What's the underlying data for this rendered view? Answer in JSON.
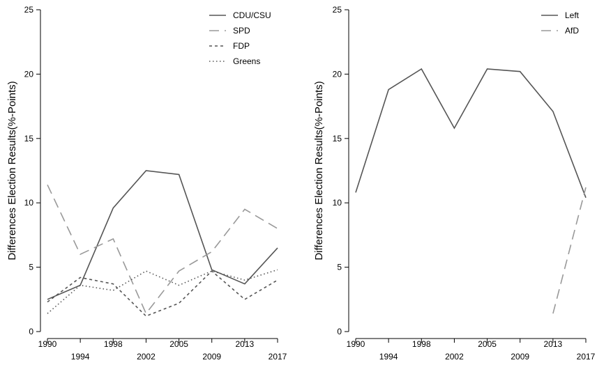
{
  "chart_data": [
    {
      "type": "line",
      "title": "",
      "xlabel": "",
      "ylabel": "Differences Election Results(%-Points)",
      "x": [
        "1990",
        "1994",
        "1998",
        "2002",
        "2005",
        "2009",
        "2013",
        "2017"
      ],
      "ylim": [
        0,
        25
      ],
      "yticks": [
        0,
        5,
        10,
        15,
        20,
        25
      ],
      "grid": false,
      "legend_position": "top-right",
      "series": [
        {
          "name": "CDU/CSU",
          "dash": "solid",
          "color": "#555555",
          "values": [
            2.5,
            3.6,
            9.6,
            12.5,
            12.2,
            4.8,
            3.7,
            6.5
          ]
        },
        {
          "name": "SPD",
          "dash": "longdash",
          "color": "#999999",
          "values": [
            11.4,
            6.0,
            7.2,
            1.4,
            4.7,
            6.2,
            9.5,
            8.0
          ]
        },
        {
          "name": "FDP",
          "dash": "dashed",
          "color": "#555555",
          "values": [
            2.3,
            4.2,
            3.7,
            1.2,
            2.2,
            4.7,
            2.5,
            4.0
          ]
        },
        {
          "name": "Greens",
          "dash": "dotted",
          "color": "#555555",
          "values": [
            1.4,
            3.6,
            3.2,
            4.7,
            3.6,
            4.7,
            4.0,
            4.8
          ]
        }
      ]
    },
    {
      "type": "line",
      "title": "",
      "xlabel": "",
      "ylabel": "Differences Election Results(%-Points)",
      "x": [
        "1990",
        "1994",
        "1998",
        "2002",
        "2005",
        "2009",
        "2013",
        "2017"
      ],
      "ylim": [
        0,
        25
      ],
      "yticks": [
        0,
        5,
        10,
        15,
        20,
        25
      ],
      "grid": false,
      "legend_position": "top-right",
      "series": [
        {
          "name": "Left",
          "dash": "solid",
          "color": "#555555",
          "values": [
            10.8,
            18.8,
            20.4,
            15.8,
            20.4,
            20.2,
            17.1,
            10.4
          ]
        },
        {
          "name": "AfD",
          "dash": "longdash",
          "color": "#999999",
          "values": [
            null,
            null,
            null,
            null,
            null,
            null,
            1.4,
            11.2
          ]
        }
      ]
    }
  ]
}
